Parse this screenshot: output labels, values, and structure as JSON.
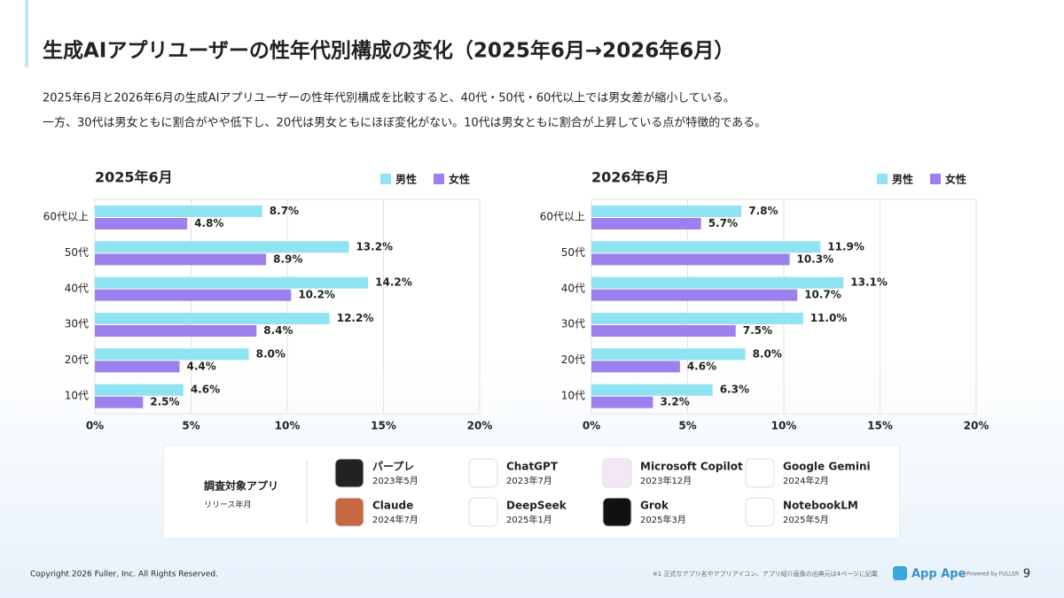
{
  "header": {
    "title": "生成AIアプリユーザーの性年代別構成の変化（2025年6月→2026年6月）",
    "lines": [
      "2025年6月と2026年6月の生成AIアプリユーザーの性年代別構成を比較すると、40代・50代・60代以上では男女差が縮小している。",
      "一方、30代は男女ともに割合がやや低下し、20代は男女ともにほぼ変化がない。10代は男女ともに割合が上昇している点が特徴的である。"
    ]
  },
  "chart_data": [
    {
      "type": "bar",
      "orientation": "horizontal",
      "title": "2025年6月",
      "categories": [
        "60代以上",
        "50代",
        "40代",
        "30代",
        "20代",
        "10代"
      ],
      "series": [
        {
          "name": "男性",
          "color": "#8fe3f3",
          "values": [
            8.7,
            13.2,
            14.2,
            12.2,
            8.0,
            4.6
          ],
          "value_labels": [
            "8.7%",
            "13.2%",
            "14.2%",
            "12.2%",
            "8.0%",
            "4.6%"
          ]
        },
        {
          "name": "女性",
          "color": "#9d80ee",
          "values": [
            4.8,
            8.9,
            10.2,
            8.4,
            4.4,
            2.5
          ],
          "value_labels": [
            "4.8%",
            "8.9%",
            "10.2%",
            "8.4%",
            "4.4%",
            "2.5%"
          ]
        }
      ],
      "xlim": [
        0,
        20
      ],
      "xticks": [
        {
          "value": 0,
          "label": "0%"
        },
        {
          "value": 5,
          "label": "5%"
        },
        {
          "value": 10,
          "label": "10%"
        },
        {
          "value": 15,
          "label": "15%"
        },
        {
          "value": 20,
          "label": "20%"
        }
      ],
      "grid": true,
      "legend": "top-right"
    },
    {
      "type": "bar",
      "orientation": "horizontal",
      "title": "2026年6月",
      "categories": [
        "60代以上",
        "50代",
        "40代",
        "30代",
        "20代",
        "10代"
      ],
      "series": [
        {
          "name": "男性",
          "color": "#8fe3f3",
          "values": [
            7.8,
            11.9,
            13.1,
            11.0,
            8.0,
            6.3
          ],
          "value_labels": [
            "7.8%",
            "11.9%",
            "13.1%",
            "11.0%",
            "8.0%",
            "6.3%"
          ]
        },
        {
          "name": "女性",
          "color": "#9d80ee",
          "values": [
            5.7,
            10.3,
            10.7,
            7.5,
            4.6,
            3.2
          ],
          "value_labels": [
            "5.7%",
            "10.3%",
            "10.7%",
            "7.5%",
            "4.6%",
            "3.2%"
          ]
        }
      ],
      "xlim": [
        0,
        20
      ],
      "xticks": [
        {
          "value": 0,
          "label": "0%"
        },
        {
          "value": 5,
          "label": "5%"
        },
        {
          "value": 10,
          "label": "10%"
        },
        {
          "value": 15,
          "label": "15%"
        },
        {
          "value": 20,
          "label": "20%"
        }
      ],
      "grid": true,
      "legend": "top-right"
    }
  ],
  "apps": {
    "title": "調査対象アプリ",
    "subtitle": "リリース年月",
    "items": [
      {
        "name": "パープレ",
        "release": "2023年5月"
      },
      {
        "name": "ChatGPT",
        "release": "2023年7月"
      },
      {
        "name": "Microsoft Copilot",
        "release": "2023年12月"
      },
      {
        "name": "Google Gemini",
        "release": "2024年2月"
      },
      {
        "name": "Claude",
        "release": "2024年7月"
      },
      {
        "name": "DeepSeek",
        "release": "2025年1月"
      },
      {
        "name": "Grok",
        "release": "2025年3月"
      },
      {
        "name": "NotebookLM",
        "release": "2025年5月"
      }
    ]
  },
  "footer": {
    "copyright": "Copyright 2026 Fuller, Inc. All Rights Reserved.",
    "note": "※1 正式なアプリ名やアプリアイコン、アプリ紹介画像の出典元は4ページに記載",
    "logo": "App Ape",
    "powered": "Powered by FULLER",
    "page": "9"
  }
}
